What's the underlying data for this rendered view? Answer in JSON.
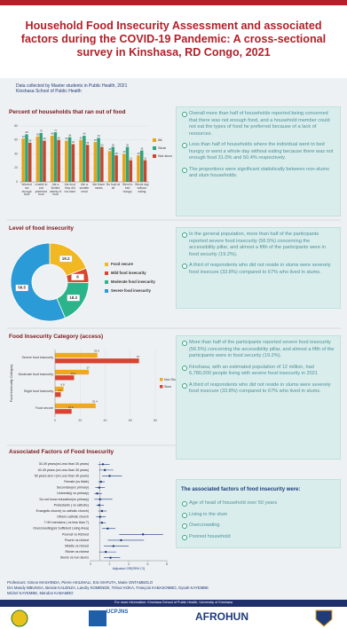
{
  "header": {
    "title": "Household Food Insecurity Assessment and associated factors during the COVID-19 Pandemic: A cross-sectional survey in Kinshasa, RD Congo, 2021",
    "credits": [
      "Data collected by Master students in Public Health, 2021",
      "Kinshasa School of Public Health"
    ]
  },
  "chart_data": [
    {
      "type": "bar",
      "title": "Percent of households that ran out of food",
      "categories": [
        "Worried not enough food",
        "Unable to eat preferred food",
        "Ate a limited variety of food",
        "Ate food they did not want",
        "Ate a smaller meal",
        "Ate fewer meals",
        "No food at all",
        "Went to bed hungry",
        "Whole day without eating"
      ],
      "series": [
        {
          "name": "All",
          "color": "#e8a317",
          "values": [
            62,
            65,
            66,
            59,
            60,
            57,
            44,
            40,
            38
          ]
        },
        {
          "name": "Slum",
          "color": "#2fa37c",
          "values": [
            68,
            70,
            71,
            64,
            66,
            63,
            50,
            50,
            45
          ]
        },
        {
          "name": "Not slum",
          "color": "#c9462c",
          "values": [
            56,
            59,
            60,
            54,
            53,
            50,
            38,
            31,
            31
          ]
        }
      ],
      "ylim": [
        0,
        80
      ],
      "yticks": [
        0,
        20,
        40,
        60,
        80
      ],
      "grid": true
    },
    {
      "type": "pie",
      "title": "Level of food insecurity",
      "categories": [
        "Food secure",
        "Mild food insecurity",
        "Moderate food insecurity",
        "Severe food insecurity"
      ],
      "values": [
        19.2,
        6,
        18.3,
        56.5
      ],
      "colors": [
        "#f2b822",
        "#d9432f",
        "#2bb38a",
        "#2a9bd6"
      ],
      "donut": true
    },
    {
      "type": "hbar",
      "title": "Food Insecurity Category (access)",
      "y_label": "Food Insecurity Category",
      "categories": [
        "Severe food insecurity",
        "Moderate food insecurity",
        "Slight food insecurity",
        "Food secure"
      ],
      "series": [
        {
          "name": "Non Slum",
          "color": "#f0a81c",
          "values": [
            33.8,
            27,
            6.8,
            32.4
          ]
        },
        {
          "name": "Slum",
          "color": "#d9432f",
          "values": [
            67,
            15.2,
            4.6,
            13.2
          ]
        }
      ],
      "xlim": [
        0,
        80
      ],
      "xticks": [
        0,
        20,
        40,
        60,
        80
      ],
      "grid": true
    },
    {
      "type": "forest",
      "title": "Associated Factors of Food Insecurity",
      "x_label": "Adjusted OR(95% CI)",
      "categories": [
        "30-39 years(vs Less than 30 years)",
        "40-49 years (vs Less than 30 years)",
        "50 years and +(vs Less than 30 years)",
        "Female (vs Male)",
        "Secondary(vs primary)",
        "University( vs primary)",
        "Do not know education(vs primary)",
        "Protestants ( vs catholic)",
        "Evangelic church( vs catholic church)",
        "Others catholic church",
        "7 HH members ( vs less than 7)",
        "Overcrowding(vs Sufficient Living Area)",
        "Poorest vs Richest",
        "Poorer vs richest",
        "Middle vs richest",
        "Richer vs richest",
        "Slums vs non-slums"
      ],
      "values": [
        1.3,
        1.5,
        2.0,
        1.1,
        0.9,
        0.7,
        1.0,
        0.9,
        1.2,
        1.0,
        1.2,
        1.8,
        5.5,
        3.2,
        2.4,
        1.6,
        2.1
      ],
      "lower": [
        0.8,
        0.9,
        1.2,
        0.8,
        0.5,
        0.4,
        0.4,
        0.6,
        0.8,
        0.6,
        0.9,
        1.2,
        3.0,
        1.8,
        1.4,
        0.9,
        1.4
      ],
      "upper": [
        2.0,
        2.4,
        3.3,
        1.5,
        1.5,
        1.2,
        2.3,
        1.4,
        1.7,
        1.6,
        1.6,
        2.6,
        7.6,
        5.6,
        4.0,
        2.7,
        3.1
      ],
      "color": "#1f3b7a",
      "reference_line": 1,
      "xlim": [
        0,
        8
      ],
      "xticks": [
        0,
        2,
        4,
        6,
        8
      ]
    }
  ],
  "findings": [
    {
      "bullets": [
        "Overall more than half of households reported being concerned that there was not enough food, and a household member could not eat the types of food he preferred because of a lack of resources.",
        "Less than half of households where the individual went to bed hungry or went a whole day without eating because there was not enough food 31.0% and 50.4% respectively.",
        "The proportions were significant statistically between non-slums and slum households."
      ]
    },
    {
      "bullets": [
        "In the general population, more than half of the participants reported severe food insecurity (56.5%) concerning the accessibility pillar, and almost a fifth of the participants were in food security (19.2%).",
        "A third of respondents who did not reside in slums were severely food insecure (33.8%) compared to 67% who lived in slums."
      ]
    },
    {
      "bullets": [
        "More than half of the participants reported severe food insecurity (56.5%) concerning the accessibility pillar, and almost a fifth of the participants were in food security (19.2%).",
        "Kinshasa, with an estimated population of 12 million, had 6,780,000 people living with severe food insecurity in 2021",
        "A third of respondents who did not reside in slums were severely food insecure (33.8%) compared to 67% who lived in slums."
      ]
    },
    {
      "heading": "The associated factors of food insecurity were:",
      "bullets": [
        "Age of head of household over 50 years",
        "Living in the slum",
        "Overcrowding",
        "Poorest household"
      ]
    }
  ],
  "footer": {
    "authors": [
      "Professors: Simon MASHINDA, Pierre AKILIMALI, Eric MAFUTA, Marie ONTAMBOLO",
      "Drs Mandy MBUNGA, Bessie KALENZA, Landry KOMENDE, Trésor KOKA, François KABASOMBO, Gysah KAYEMBE",
      "Michel KAYEMBE, Mandon KABAMBO"
    ],
    "contact": "For more information: Kinshasa School of Public Health, University of Kinshasa",
    "logos": [
      "UCPJNS",
      "AFROHUN"
    ]
  }
}
